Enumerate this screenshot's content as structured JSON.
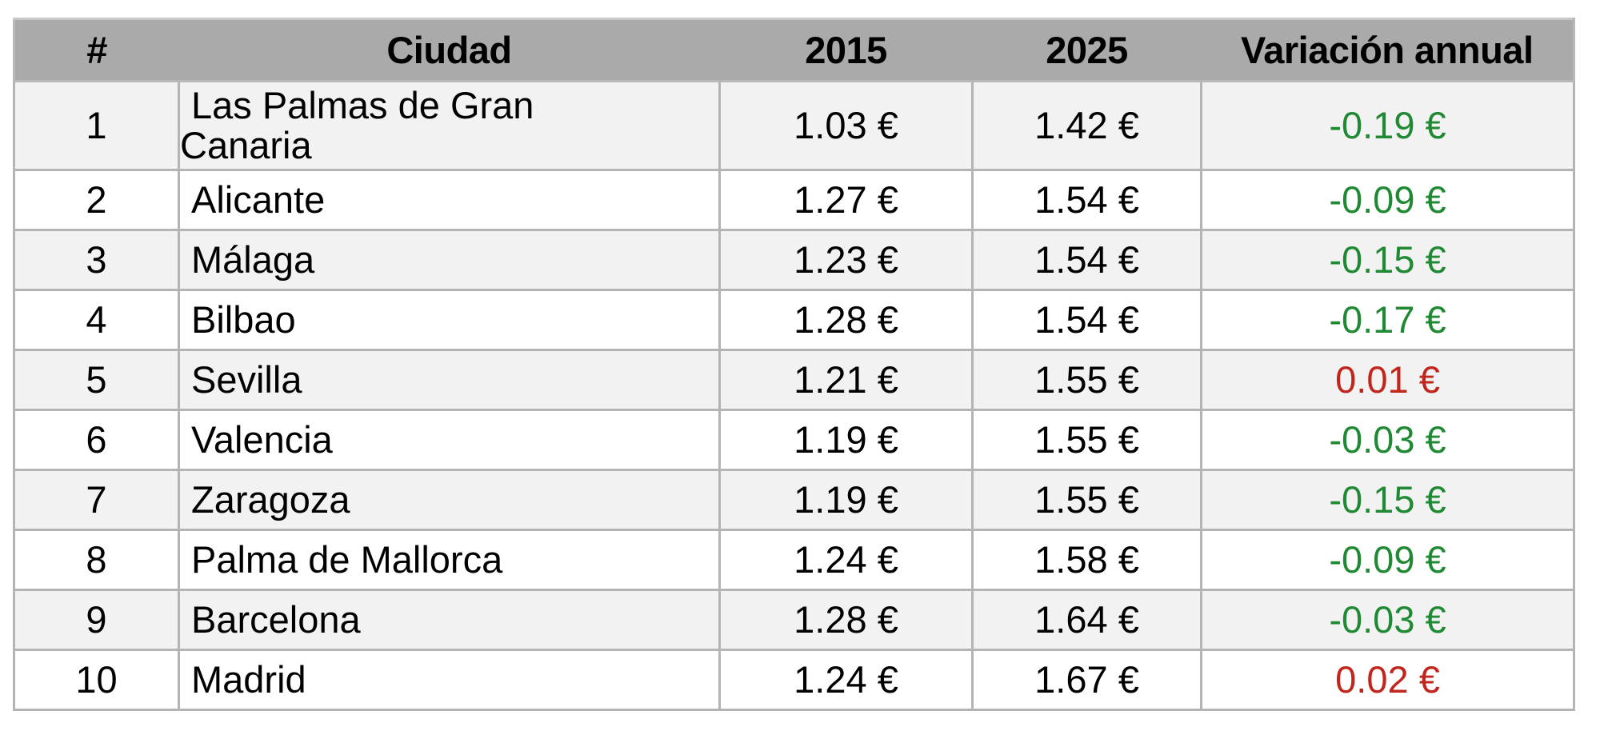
{
  "table": {
    "headers": {
      "rank": "#",
      "city": "Ciudad",
      "y2015": "2015",
      "y2025": "2025",
      "variation": "Variación annual"
    },
    "colors": {
      "header_bg": "#aaaaaa",
      "row_alt_bg": "#f2f2f2",
      "negative": "#1f8a33",
      "positive": "#c1261c",
      "border": "#b4b4b4"
    },
    "rows": [
      {
        "rank": "1",
        "city_line1": "Las Palmas de Gran",
        "city_line2": "Canaria",
        "y2015": "1.03 €",
        "y2025": "1.42 €",
        "variation": "-0.19 €",
        "sign": "neg"
      },
      {
        "rank": "2",
        "city": "Alicante",
        "y2015": "1.27 €",
        "y2025": "1.54 €",
        "variation": "-0.09 €",
        "sign": "neg"
      },
      {
        "rank": "3",
        "city": "Málaga",
        "y2015": "1.23 €",
        "y2025": "1.54 €",
        "variation": "-0.15 €",
        "sign": "neg"
      },
      {
        "rank": "4",
        "city": "Bilbao",
        "y2015": "1.28 €",
        "y2025": "1.54 €",
        "variation": "-0.17 €",
        "sign": "neg"
      },
      {
        "rank": "5",
        "city": "Sevilla",
        "y2015": "1.21 €",
        "y2025": "1.55 €",
        "variation": "0.01 €",
        "sign": "pos"
      },
      {
        "rank": "6",
        "city": "Valencia",
        "y2015": "1.19 €",
        "y2025": "1.55 €",
        "variation": "-0.03 €",
        "sign": "neg"
      },
      {
        "rank": "7",
        "city": "Zaragoza",
        "y2015": "1.19 €",
        "y2025": "1.55 €",
        "variation": "-0.15 €",
        "sign": "neg"
      },
      {
        "rank": "8",
        "city": "Palma de Mallorca",
        "y2015": "1.24 €",
        "y2025": "1.58 €",
        "variation": "-0.09 €",
        "sign": "neg"
      },
      {
        "rank": "9",
        "city": "Barcelona",
        "y2015": "1.28 €",
        "y2025": "1.64 €",
        "variation": "-0.03 €",
        "sign": "neg"
      },
      {
        "rank": "10",
        "city": "Madrid",
        "y2015": "1.24 €",
        "y2025": "1.67 €",
        "variation": "0.02 €",
        "sign": "pos"
      }
    ]
  }
}
